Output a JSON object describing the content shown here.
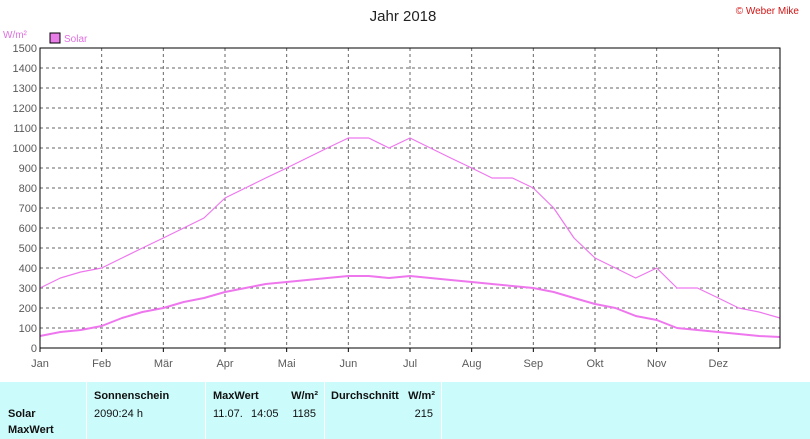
{
  "title": "Jahr 2018",
  "copyright": "© Weber Mike",
  "unit": "W/m²",
  "legend": {
    "label": "Solar",
    "color": "#e87de8"
  },
  "colors": {
    "series": "#ee77ee",
    "grid": "#666666",
    "stats_bg": "#ccfbfb"
  },
  "chart_data": {
    "type": "line",
    "title": "Jahr 2018",
    "ylabel": "W/m²",
    "ylim": [
      0,
      1500
    ],
    "y_ticks": [
      "0",
      "100",
      "200",
      "300",
      "400",
      "500",
      "600",
      "700",
      "800",
      "900",
      "1000",
      "1100",
      "1200",
      "1300",
      "1400",
      "1500"
    ],
    "x_ticks": [
      "Jan",
      "Feb",
      "Mär",
      "Apr",
      "Mai",
      "Jun",
      "Jul",
      "Aug",
      "Sep",
      "Okt",
      "Nov",
      "Dez"
    ],
    "grid": true,
    "legend_position": "top-left",
    "series": [
      {
        "name": "Solar",
        "description_values": "daily max (upper line) and daily average (lower line), estimated per ~10 days",
        "x_month": [
          0,
          0.33,
          0.66,
          1,
          1.33,
          1.66,
          2,
          2.33,
          2.66,
          3,
          3.33,
          3.66,
          4,
          4.33,
          4.66,
          5,
          5.33,
          5.66,
          6,
          6.33,
          6.66,
          7,
          7.33,
          7.66,
          8,
          8.33,
          8.66,
          9,
          9.33,
          9.66,
          10,
          10.33,
          10.66,
          11,
          11.33,
          11.66,
          12
        ],
        "max": [
          300,
          350,
          380,
          400,
          450,
          500,
          550,
          600,
          650,
          750,
          800,
          850,
          900,
          950,
          1000,
          1050,
          1050,
          1000,
          1050,
          1000,
          950,
          900,
          850,
          850,
          800,
          700,
          550,
          450,
          400,
          350,
          400,
          300,
          300,
          250,
          200,
          180,
          150
        ],
        "avg": [
          60,
          80,
          90,
          110,
          150,
          180,
          200,
          230,
          250,
          280,
          300,
          320,
          330,
          340,
          350,
          360,
          360,
          350,
          360,
          350,
          340,
          330,
          320,
          310,
          300,
          280,
          250,
          220,
          200,
          160,
          140,
          100,
          90,
          80,
          70,
          60,
          55
        ]
      }
    ]
  },
  "stats": {
    "row_labels": [
      "Solar",
      "MaxWert"
    ],
    "sonnenschein": {
      "header": "Sonnenschein",
      "value": "2090:24 h"
    },
    "maxwert": {
      "header": "MaxWert",
      "unit": "W/m²",
      "date": "11.07.",
      "time": "14:05",
      "value": "1185"
    },
    "durchschnitt": {
      "header": "Durchschnitt",
      "unit": "W/m²",
      "value": "215"
    }
  }
}
